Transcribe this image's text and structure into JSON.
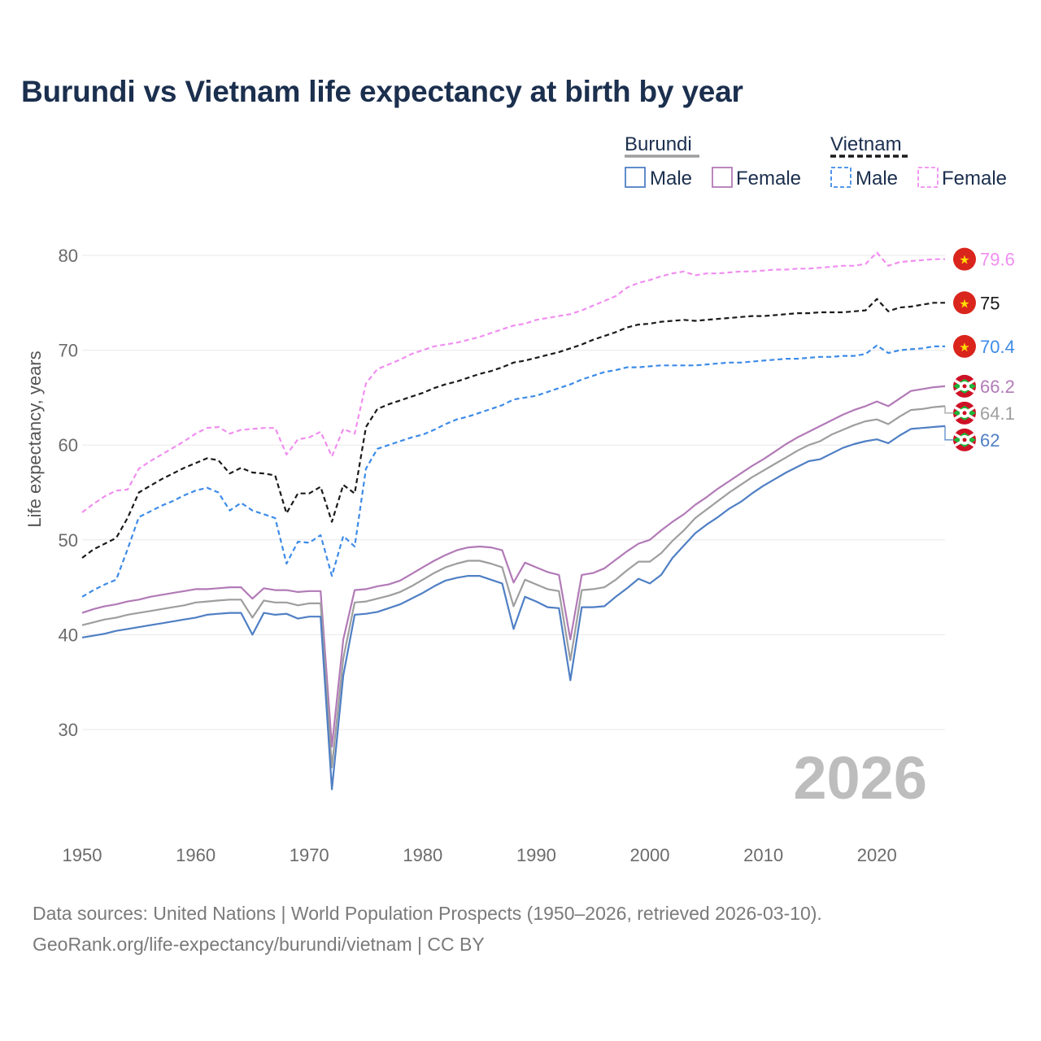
{
  "title": "Burundi vs Vietnam life expectancy at birth by year",
  "legend": {
    "groups": [
      {
        "country": "Burundi",
        "items": [
          "Male",
          "Female"
        ]
      },
      {
        "country": "Vietnam",
        "items": [
          "Male",
          "Female"
        ]
      }
    ]
  },
  "watermark_year": "2026",
  "source_line1": "Data sources: United Nations | World Population Prospects (1950–2026, retrieved 2026-03-10).",
  "source_line2": "GeoRank.org/life-expectancy/burundi/vietnam | CC BY",
  "colors": {
    "burundi_total": "#9e9e9e",
    "burundi_male": "#4f7fc4",
    "burundi_female": "#b27ab7",
    "vietnam_total": "#1a1a1a",
    "vietnam_male": "#3d8be8",
    "vietnam_female": "#f08ef0",
    "grid": "#e8e8e8",
    "flag_vietnam": "#da251d",
    "flag_vietnam_star": "#ffdd00",
    "flag_burundi_red": "#ce1126",
    "flag_burundi_green": "#1eb53a"
  },
  "chart_data": {
    "type": "line",
    "title": "Burundi vs Vietnam life expectancy at birth by year",
    "xlabel": "",
    "ylabel": "Life expectancy, years",
    "xlim": [
      1950,
      2026
    ],
    "ylim": [
      20,
      85
    ],
    "x_ticks": [
      1950,
      1960,
      1970,
      1980,
      1990,
      2000,
      2010,
      2020
    ],
    "y_ticks": [
      30,
      40,
      50,
      60,
      70,
      80
    ],
    "grid": true,
    "legend_position": "top-right",
    "x": [
      1950,
      1951,
      1952,
      1953,
      1954,
      1955,
      1956,
      1957,
      1958,
      1959,
      1960,
      1961,
      1962,
      1963,
      1964,
      1965,
      1966,
      1967,
      1968,
      1969,
      1970,
      1971,
      1972,
      1973,
      1974,
      1975,
      1976,
      1977,
      1978,
      1979,
      1980,
      1981,
      1982,
      1983,
      1984,
      1985,
      1986,
      1987,
      1988,
      1989,
      1990,
      1991,
      1992,
      1993,
      1994,
      1995,
      1996,
      1997,
      1998,
      1999,
      2000,
      2001,
      2002,
      2003,
      2004,
      2005,
      2006,
      2007,
      2008,
      2009,
      2010,
      2011,
      2012,
      2013,
      2014,
      2015,
      2016,
      2017,
      2018,
      2019,
      2020,
      2021,
      2022,
      2023,
      2024,
      2025,
      2026
    ],
    "series": [
      {
        "name": "Vietnam Female",
        "country": "Vietnam",
        "sex": "Female",
        "style": "dashed",
        "end_label": "79.6",
        "values": [
          52.9,
          53.8,
          54.6,
          55.2,
          55.3,
          57.5,
          58.3,
          59.0,
          59.7,
          60.4,
          61.2,
          61.8,
          61.9,
          61.2,
          61.6,
          61.7,
          61.8,
          61.8,
          59.0,
          60.6,
          60.8,
          61.4,
          58.8,
          61.7,
          61.2,
          66.5,
          68.0,
          68.5,
          69.0,
          69.6,
          70.0,
          70.4,
          70.6,
          70.8,
          71.1,
          71.4,
          71.8,
          72.2,
          72.6,
          72.8,
          73.2,
          73.4,
          73.6,
          73.8,
          74.2,
          74.7,
          75.2,
          75.7,
          76.6,
          77.1,
          77.4,
          77.8,
          78.1,
          78.3,
          77.9,
          78.1,
          78.1,
          78.2,
          78.3,
          78.3,
          78.4,
          78.5,
          78.5,
          78.6,
          78.6,
          78.7,
          78.8,
          78.9,
          78.9,
          79.1,
          80.3,
          78.9,
          79.3,
          79.4,
          79.5,
          79.6,
          79.6
        ]
      },
      {
        "name": "Vietnam Total",
        "country": "Vietnam",
        "sex": "Total",
        "style": "dashed",
        "end_label": "75",
        "values": [
          48.1,
          49.0,
          49.6,
          50.2,
          52.3,
          55.0,
          55.7,
          56.4,
          57.0,
          57.6,
          58.1,
          58.6,
          58.4,
          57.0,
          57.6,
          57.1,
          57.0,
          56.8,
          52.8,
          54.9,
          54.9,
          55.6,
          51.9,
          55.8,
          54.9,
          61.9,
          63.8,
          64.3,
          64.7,
          65.1,
          65.5,
          66.0,
          66.4,
          66.7,
          67.1,
          67.5,
          67.8,
          68.2,
          68.7,
          68.9,
          69.2,
          69.5,
          69.8,
          70.2,
          70.6,
          71.1,
          71.5,
          71.9,
          72.4,
          72.7,
          72.8,
          73.0,
          73.1,
          73.2,
          73.1,
          73.2,
          73.3,
          73.4,
          73.5,
          73.6,
          73.6,
          73.7,
          73.8,
          73.9,
          73.9,
          74.0,
          74.0,
          74.0,
          74.1,
          74.2,
          75.4,
          74.1,
          74.5,
          74.6,
          74.8,
          75.0,
          75.0
        ]
      },
      {
        "name": "Vietnam Male",
        "country": "Vietnam",
        "sex": "Male",
        "style": "dashed",
        "end_label": "70.4",
        "values": [
          44.0,
          44.7,
          45.3,
          45.8,
          49.0,
          52.4,
          53.0,
          53.6,
          54.1,
          54.7,
          55.2,
          55.5,
          55.0,
          53.1,
          53.9,
          53.1,
          52.7,
          52.3,
          47.5,
          49.8,
          49.7,
          50.5,
          46.2,
          50.4,
          49.3,
          57.5,
          59.6,
          60.0,
          60.4,
          60.8,
          61.1,
          61.6,
          62.2,
          62.7,
          63.0,
          63.4,
          63.8,
          64.2,
          64.8,
          65.0,
          65.2,
          65.6,
          66.0,
          66.4,
          66.9,
          67.3,
          67.7,
          67.9,
          68.2,
          68.2,
          68.3,
          68.4,
          68.4,
          68.4,
          68.4,
          68.5,
          68.6,
          68.7,
          68.7,
          68.8,
          68.9,
          69.0,
          69.1,
          69.1,
          69.2,
          69.3,
          69.3,
          69.4,
          69.4,
          69.6,
          70.5,
          69.7,
          70.0,
          70.1,
          70.2,
          70.4,
          70.4
        ]
      },
      {
        "name": "Burundi Female",
        "country": "Burundi",
        "sex": "Female",
        "style": "solid",
        "end_label": "66.2",
        "values": [
          42.3,
          42.7,
          43.0,
          43.2,
          43.5,
          43.7,
          44.0,
          44.2,
          44.4,
          44.6,
          44.8,
          44.8,
          44.9,
          45.0,
          45.0,
          43.8,
          44.9,
          44.7,
          44.7,
          44.5,
          44.6,
          44.6,
          28.2,
          39.5,
          44.7,
          44.8,
          45.1,
          45.3,
          45.7,
          46.4,
          47.1,
          47.8,
          48.4,
          48.9,
          49.2,
          49.3,
          49.2,
          48.9,
          45.5,
          47.6,
          47.1,
          46.6,
          46.3,
          39.5,
          46.3,
          46.5,
          47.0,
          47.9,
          48.8,
          49.6,
          50.0,
          51.0,
          51.9,
          52.7,
          53.7,
          54.5,
          55.4,
          56.2,
          57.0,
          57.8,
          58.5,
          59.3,
          60.1,
          60.8,
          61.4,
          62.0,
          62.6,
          63.2,
          63.7,
          64.1,
          64.6,
          64.1,
          64.9,
          65.7,
          65.9,
          66.1,
          66.2
        ]
      },
      {
        "name": "Burundi Total",
        "country": "Burundi",
        "sex": "Total",
        "style": "solid",
        "end_label": "64.1",
        "values": [
          41.0,
          41.3,
          41.6,
          41.8,
          42.1,
          42.3,
          42.5,
          42.7,
          42.9,
          43.1,
          43.4,
          43.5,
          43.6,
          43.7,
          43.7,
          41.8,
          43.6,
          43.4,
          43.4,
          43.1,
          43.3,
          43.3,
          26.0,
          37.5,
          43.4,
          43.5,
          43.8,
          44.1,
          44.5,
          45.1,
          45.8,
          46.5,
          47.1,
          47.5,
          47.8,
          47.8,
          47.5,
          47.1,
          43.0,
          45.8,
          45.3,
          44.8,
          44.6,
          37.3,
          44.7,
          44.8,
          45.0,
          45.8,
          46.8,
          47.7,
          47.7,
          48.6,
          49.9,
          51.0,
          52.3,
          53.2,
          54.1,
          55.0,
          55.8,
          56.6,
          57.3,
          58.0,
          58.7,
          59.4,
          60.0,
          60.4,
          61.1,
          61.6,
          62.1,
          62.5,
          62.7,
          62.2,
          63.0,
          63.7,
          63.8,
          64.0,
          64.1
        ]
      },
      {
        "name": "Burundi Male",
        "country": "Burundi",
        "sex": "Male",
        "style": "solid",
        "end_label": "62",
        "values": [
          39.7,
          39.9,
          40.1,
          40.4,
          40.6,
          40.8,
          41.0,
          41.2,
          41.4,
          41.6,
          41.8,
          42.1,
          42.2,
          42.3,
          42.3,
          40.0,
          42.3,
          42.1,
          42.2,
          41.7,
          41.9,
          41.9,
          23.7,
          35.7,
          42.1,
          42.2,
          42.4,
          42.8,
          43.2,
          43.8,
          44.4,
          45.1,
          45.7,
          46.0,
          46.2,
          46.2,
          45.8,
          45.4,
          40.6,
          44.0,
          43.5,
          42.9,
          42.8,
          35.2,
          42.9,
          42.9,
          43.0,
          44.0,
          44.9,
          45.9,
          45.4,
          46.3,
          48.1,
          49.4,
          50.7,
          51.6,
          52.4,
          53.3,
          54.0,
          54.9,
          55.7,
          56.4,
          57.1,
          57.7,
          58.3,
          58.5,
          59.1,
          59.7,
          60.1,
          60.4,
          60.6,
          60.2,
          61.0,
          61.7,
          61.8,
          61.9,
          62.0
        ]
      }
    ]
  }
}
